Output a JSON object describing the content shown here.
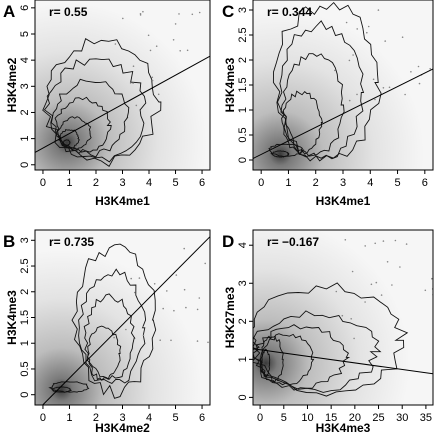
{
  "chart_data": [
    {
      "type": "scatter",
      "panel": "A",
      "annotation": "r= 0.55",
      "xlabel": "H3K4me1",
      "ylabel": "H3K4me2",
      "xlim": [
        -0.3,
        6.3
      ],
      "ylim": [
        -0.2,
        6.3
      ],
      "xticks": [
        0,
        1,
        2,
        3,
        4,
        5,
        6
      ],
      "yticks": [
        0,
        1,
        2,
        3,
        4,
        5,
        6
      ],
      "density_center": [
        0.8,
        0.8
      ],
      "contour_levels": [
        {
          "cx": 0.9,
          "cy": 0.85,
          "rx": 0.12,
          "ry": 0.1
        },
        {
          "cx": 1.0,
          "cy": 1.0,
          "rx": 0.35,
          "ry": 0.35
        },
        {
          "cx": 1.2,
          "cy": 1.2,
          "rx": 0.6,
          "ry": 0.6
        },
        {
          "cx": 1.5,
          "cy": 1.5,
          "rx": 1.0,
          "ry": 1.0
        },
        {
          "cx": 1.8,
          "cy": 1.8,
          "rx": 1.4,
          "ry": 1.4
        },
        {
          "cx": 2.0,
          "cy": 2.1,
          "rx": 1.8,
          "ry": 1.9
        },
        {
          "cx": 2.2,
          "cy": 2.4,
          "rx": 2.1,
          "ry": 2.3
        }
      ],
      "fit_line": {
        "x": [
          -0.3,
          6.3
        ],
        "y": [
          0.47,
          4.15
        ]
      }
    },
    {
      "type": "scatter",
      "panel": "C",
      "annotation": "r= 0.344",
      "xlabel": "H3K4me1",
      "ylabel": "H3K4me3",
      "xlim": [
        -0.3,
        6.3
      ],
      "ylim": [
        -0.2,
        3.2
      ],
      "xticks": [
        0,
        1,
        2,
        3,
        4,
        5,
        6
      ],
      "yticks": [
        0,
        0.5,
        1,
        1.5,
        2,
        2.5,
        3
      ],
      "contour_levels": [
        {
          "cx": 0.7,
          "cy": 0.12,
          "rx": 0.3,
          "ry": 0.06
        },
        {
          "cx": 0.9,
          "cy": 0.2,
          "rx": 0.6,
          "ry": 0.12
        },
        {
          "cx": 1.5,
          "cy": 0.75,
          "rx": 0.7,
          "ry": 0.6
        },
        {
          "cx": 1.9,
          "cy": 1.1,
          "rx": 1.1,
          "ry": 1.0
        },
        {
          "cx": 2.2,
          "cy": 1.35,
          "rx": 1.5,
          "ry": 1.35
        },
        {
          "cx": 2.4,
          "cy": 1.55,
          "rx": 1.9,
          "ry": 1.55
        }
      ],
      "fit_line": {
        "x": [
          -0.3,
          6.3
        ],
        "y": [
          0.03,
          1.82
        ]
      }
    },
    {
      "type": "scatter",
      "panel": "B",
      "annotation": "r= 0.735",
      "xlabel": "H3K4me2",
      "ylabel": "H3K4me3",
      "xlim": [
        -0.3,
        6.3
      ],
      "ylim": [
        -0.2,
        3.2
      ],
      "xticks": [
        0,
        1,
        2,
        3,
        4,
        5,
        6
      ],
      "yticks": [
        0,
        0.5,
        1,
        1.5,
        2,
        2.5,
        3
      ],
      "contour_levels": [
        {
          "cx": 0.7,
          "cy": 0.1,
          "rx": 0.35,
          "ry": 0.05
        },
        {
          "cx": 1.0,
          "cy": 0.15,
          "rx": 0.7,
          "ry": 0.1
        },
        {
          "cx": 2.3,
          "cy": 0.8,
          "rx": 0.6,
          "ry": 0.5
        },
        {
          "cx": 2.5,
          "cy": 1.1,
          "rx": 0.9,
          "ry": 0.8
        },
        {
          "cx": 2.6,
          "cy": 1.3,
          "rx": 1.2,
          "ry": 1.1
        },
        {
          "cx": 2.7,
          "cy": 1.45,
          "rx": 1.5,
          "ry": 1.4
        }
      ],
      "fit_line": {
        "x": [
          -0.3,
          6.3
        ],
        "y": [
          -0.35,
          3.07
        ]
      }
    },
    {
      "type": "scatter",
      "panel": "D",
      "annotation": "r= −0.167",
      "xlabel": "H3K4me3",
      "ylabel": "H3K27me3",
      "xlim": [
        -1.5,
        36.5
      ],
      "ylim": [
        -0.2,
        4.4
      ],
      "xticks": [
        0,
        5,
        10,
        15,
        20,
        25,
        30,
        35
      ],
      "yticks": [
        0,
        1,
        2,
        3,
        4
      ],
      "contour_levels": [
        {
          "cx": 1.2,
          "cy": 0.9,
          "rx": 0.8,
          "ry": 0.35
        },
        {
          "cx": 2.5,
          "cy": 1.0,
          "rx": 2.3,
          "ry": 0.6
        },
        {
          "cx": 5.5,
          "cy": 1.0,
          "rx": 5.5,
          "ry": 0.65
        },
        {
          "cx": 8.5,
          "cy": 1.05,
          "rx": 9.5,
          "ry": 0.8
        },
        {
          "cx": 11.5,
          "cy": 1.2,
          "rx": 13.0,
          "ry": 1.0
        },
        {
          "cx": 14.0,
          "cy": 1.5,
          "rx": 16.0,
          "ry": 1.4
        }
      ],
      "fit_line": {
        "x": [
          -1.5,
          36.5
        ],
        "y": [
          1.28,
          0.62
        ]
      }
    }
  ]
}
